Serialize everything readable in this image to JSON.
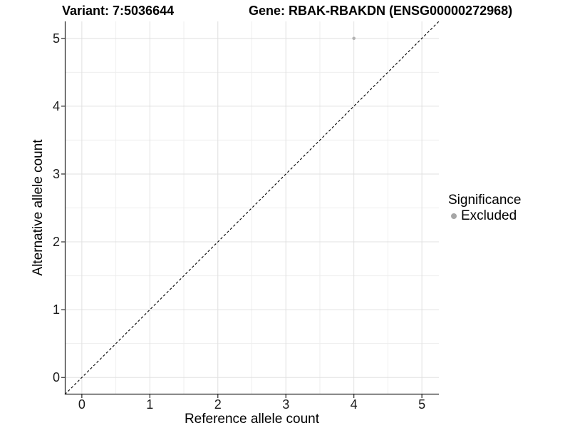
{
  "header": {
    "variant_title": "Variant: 7:5036644",
    "gene_title": "Gene: RBAK-RBAKDN (ENSG00000272968)"
  },
  "chart_data": {
    "type": "scatter",
    "xlabel": "Reference allele count",
    "ylabel": "Alternative allele count",
    "xlim": [
      -0.25,
      5.25
    ],
    "ylim": [
      -0.25,
      5.25
    ],
    "x_ticks": [
      0,
      1,
      2,
      3,
      4,
      5
    ],
    "y_ticks": [
      0,
      1,
      2,
      3,
      4,
      5
    ],
    "x_minor_ticks": [
      0.5,
      1.5,
      2.5,
      3.5,
      4.5
    ],
    "y_minor_ticks": [
      0.5,
      1.5,
      2.5,
      3.5,
      4.5
    ],
    "grid": "major+minor",
    "identity_line": {
      "style": "dashed",
      "color": "#000000",
      "from": -0.25,
      "to": 5.25
    },
    "series": [
      {
        "name": "Excluded",
        "color": "#b3b3b3",
        "points": [
          {
            "x": 4,
            "y": 5
          }
        ]
      }
    ],
    "legend": {
      "title": "Significance",
      "position": "right",
      "items": [
        {
          "label": "Excluded",
          "color": "#a6a6a6",
          "marker": "circle"
        }
      ]
    }
  },
  "colors": {
    "background": "#ffffff",
    "grid_major": "#e0e0e0",
    "grid_minor": "#eeeeee",
    "axis_line": "#262626",
    "tick_text": "#1a1a1a",
    "point": "#b3b3b3"
  }
}
